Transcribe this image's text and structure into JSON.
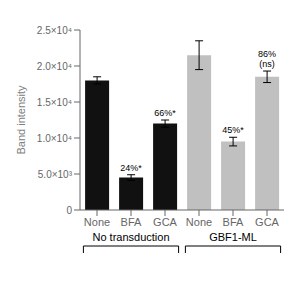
{
  "chart_data": {
    "type": "bar",
    "categories": [
      "None",
      "BFA",
      "GCA",
      "None",
      "BFA",
      "GCA"
    ],
    "values": [
      18000,
      4500,
      12000,
      21500,
      9500,
      18500
    ],
    "errors": [
      500,
      400,
      500,
      2000,
      600,
      800
    ],
    "colors": [
      "#111111",
      "#111111",
      "#111111",
      "#c0c0c0",
      "#c0c0c0",
      "#c0c0c0"
    ],
    "annotations": [
      null,
      "24%*",
      "66%*",
      null,
      "45%*",
      "86%\n(ns)"
    ],
    "ylabel": "Band intensity",
    "ylim": [
      0,
      25000
    ],
    "yticks": [
      0,
      {
        "value": 5000,
        "label": "5.0×10³"
      },
      {
        "value": 10000,
        "label": "1.0×10⁴"
      },
      {
        "value": 15000,
        "label": "1.5×10⁴"
      },
      {
        "value": 20000,
        "label": "2.0×10⁴"
      },
      {
        "value": 25000,
        "label": "2.5×10⁴"
      }
    ],
    "groups": [
      {
        "name": "No transduction",
        "size": 3
      },
      {
        "name": "GBF1-ML",
        "size": 3
      }
    ],
    "grid": false
  }
}
